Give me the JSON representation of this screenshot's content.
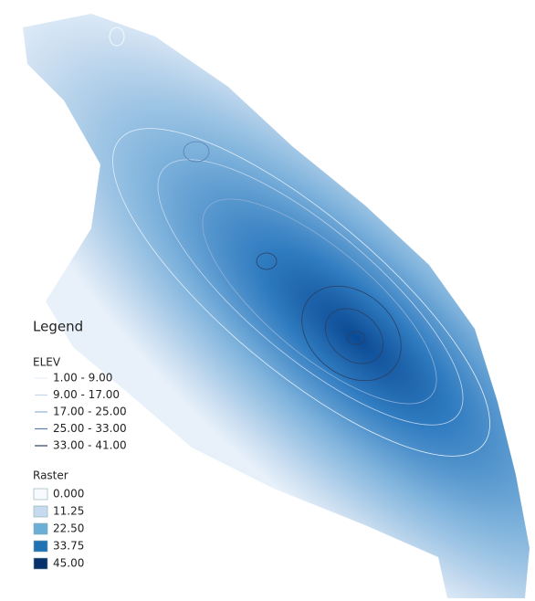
{
  "legend": {
    "title": "Legend",
    "elev": {
      "title": "ELEV",
      "items": [
        {
          "label": "1.00 - 9.00",
          "color": "#e6eef8"
        },
        {
          "label": "9.00 - 17.00",
          "color": "#c4d6ec"
        },
        {
          "label": "17.00 - 25.00",
          "color": "#8fb0d6"
        },
        {
          "label": "25.00 - 33.00",
          "color": "#5a7fae"
        },
        {
          "label": "33.00 - 41.00",
          "color": "#2c3f63"
        }
      ]
    },
    "raster": {
      "title": "Raster",
      "items": [
        {
          "label": "0.000",
          "color": "#f7fbff"
        },
        {
          "label": "11.25",
          "color": "#c6dbef"
        },
        {
          "label": "22.50",
          "color": "#6baed6"
        },
        {
          "label": "33.75",
          "color": "#2171b5"
        },
        {
          "label": "45.00",
          "color": "#08306b"
        }
      ]
    }
  }
}
